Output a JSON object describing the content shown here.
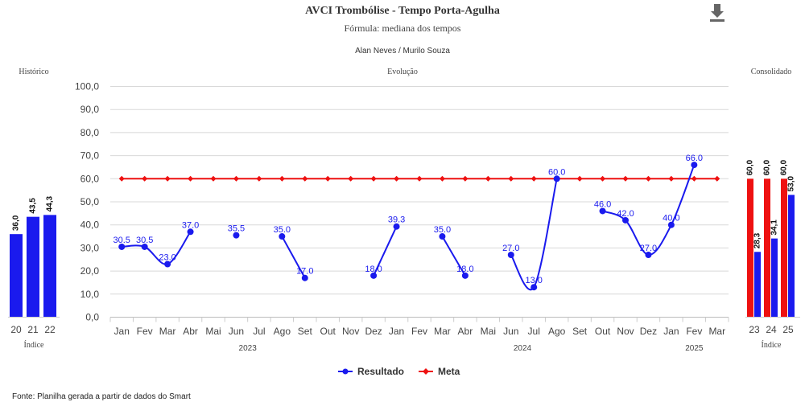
{
  "header": {
    "title": "AVCI Trombólise - Tempo Porta-Agulha",
    "subtitle": "Fórmula: mediana dos tempos",
    "authors": "Alan Neves / Murilo Souza"
  },
  "panels": {
    "historico": "Histórico",
    "evolucao": "Evolução",
    "consolidado": "Consolidado",
    "indice_left": "Índice",
    "indice_right": "Índice"
  },
  "footer": "Fonte: Planilha gerada a partir de dados do Smart",
  "colors": {
    "resultado": "#1a1aee",
    "meta": "#ee1111",
    "grid": "#d8d8d8"
  },
  "chart_data": [
    {
      "type": "bar",
      "name": "historico",
      "categories": [
        "20",
        "21",
        "22"
      ],
      "values": [
        36.0,
        43.5,
        44.3
      ],
      "xlabel": "Índice",
      "ylim": [
        0,
        100
      ]
    },
    {
      "type": "line",
      "name": "evolucao",
      "categories": [
        "Jan",
        "Fev",
        "Mar",
        "Abr",
        "Mai",
        "Jun",
        "Jul",
        "Ago",
        "Set",
        "Out",
        "Nov",
        "Dez",
        "Jan",
        "Fev",
        "Mar",
        "Abr",
        "Mai",
        "Jun",
        "Jul",
        "Ago",
        "Set",
        "Out",
        "Nov",
        "Dez",
        "Jan",
        "Fev",
        "Mar"
      ],
      "years": [
        {
          "label": "2023",
          "start": 0,
          "end": 11
        },
        {
          "label": "2024",
          "start": 12,
          "end": 23
        },
        {
          "label": "2025",
          "start": 24,
          "end": 26
        }
      ],
      "ylim": [
        0,
        100
      ],
      "yticks": [
        "0,0",
        "10,0",
        "20,0",
        "30,0",
        "40,0",
        "50,0",
        "60,0",
        "70,0",
        "80,0",
        "90,0",
        "100,0"
      ],
      "series": [
        {
          "name": "Resultado",
          "values": [
            30.5,
            30.5,
            23.0,
            37.0,
            null,
            35.5,
            null,
            35.0,
            17.0,
            null,
            null,
            18.0,
            39.3,
            null,
            35.0,
            18.0,
            null,
            27.0,
            13.0,
            60.0,
            null,
            46.0,
            42.0,
            27.0,
            40.0,
            66.0,
            null
          ],
          "labels": [
            "30.5",
            "30.5",
            "23.0",
            "37.0",
            null,
            "35.5",
            null,
            "35.0",
            "17.0",
            null,
            null,
            "18.0",
            "39.3",
            null,
            "35.0",
            "18.0",
            null,
            "27.0",
            "13.0",
            "60.0",
            null,
            "46.0",
            "42.0",
            "27.0",
            "40.0",
            "66.0",
            null
          ]
        },
        {
          "name": "Meta",
          "values": [
            60,
            60,
            60,
            60,
            60,
            60,
            60,
            60,
            60,
            60,
            60,
            60,
            60,
            60,
            60,
            60,
            60,
            60,
            60,
            60,
            60,
            60,
            60,
            60,
            60,
            60,
            60
          ]
        }
      ]
    },
    {
      "type": "bar",
      "name": "consolidado",
      "categories": [
        "23",
        "24",
        "25"
      ],
      "series": [
        {
          "name": "Meta",
          "values": [
            60.0,
            60.0,
            60.0
          ]
        },
        {
          "name": "Resultado",
          "values": [
            28.3,
            34.1,
            53.0
          ]
        }
      ],
      "xlabel": "Índice",
      "ylim": [
        0,
        100
      ]
    }
  ]
}
